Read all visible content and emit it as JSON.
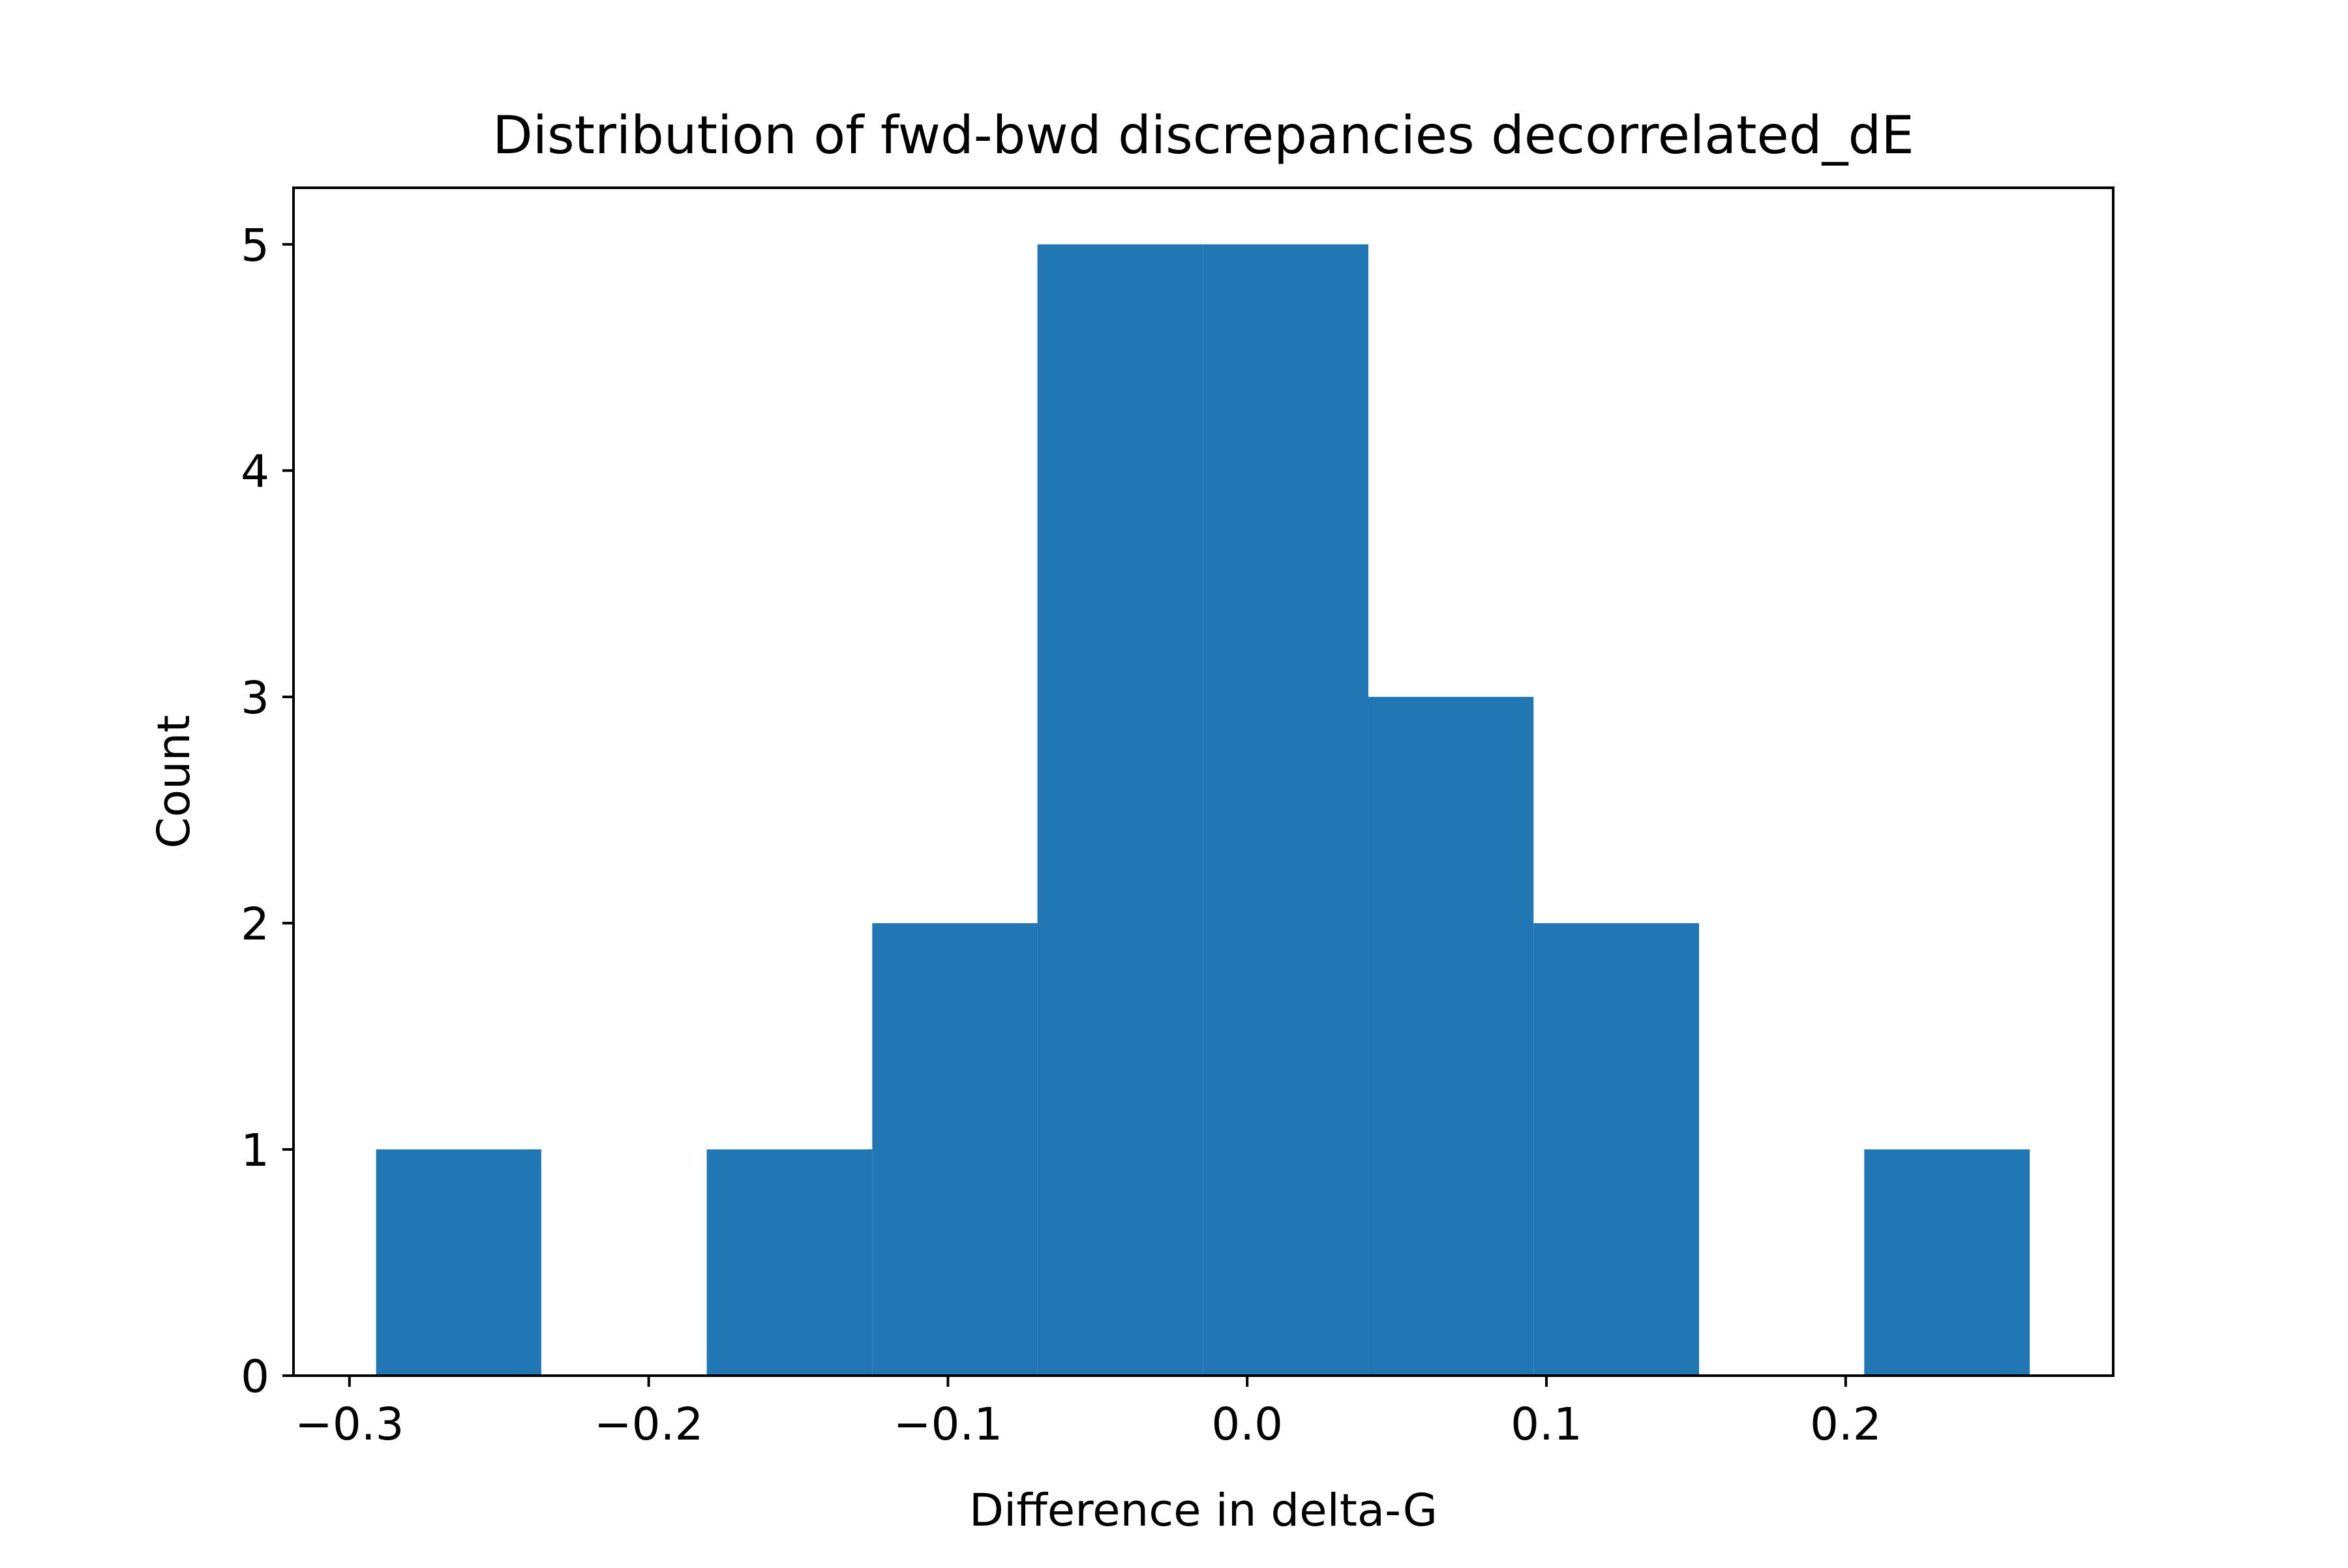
{
  "chart_data": {
    "type": "bar",
    "title": "Distribution of fwd-bwd discrepancies decorrelated_dE",
    "xlabel": "Difference in delta-G",
    "ylabel": "Count",
    "xlim": [
      -0.3187,
      0.2894
    ],
    "ylim": [
      0,
      5.25
    ],
    "bins": [
      {
        "x0": -0.2911,
        "x1": -0.2359,
        "count": 1
      },
      {
        "x0": -0.2359,
        "x1": -0.1806,
        "count": 0
      },
      {
        "x0": -0.1806,
        "x1": -0.1253,
        "count": 1
      },
      {
        "x0": -0.1253,
        "x1": -0.0701,
        "count": 2
      },
      {
        "x0": -0.0701,
        "x1": -0.0148,
        "count": 5
      },
      {
        "x0": -0.0148,
        "x1": 0.0405,
        "count": 5
      },
      {
        "x0": 0.0405,
        "x1": 0.0957,
        "count": 3
      },
      {
        "x0": 0.0957,
        "x1": 0.151,
        "count": 2
      },
      {
        "x0": 0.151,
        "x1": 0.2062,
        "count": 0
      },
      {
        "x0": 0.2062,
        "x1": 0.2615,
        "count": 1
      }
    ],
    "xticks": [
      {
        "value": -0.3,
        "label": "−0.3"
      },
      {
        "value": -0.2,
        "label": "−0.2"
      },
      {
        "value": -0.1,
        "label": "−0.1"
      },
      {
        "value": 0.0,
        "label": "0.0"
      },
      {
        "value": 0.1,
        "label": "0.1"
      },
      {
        "value": 0.2,
        "label": "0.2"
      }
    ],
    "yticks": [
      {
        "value": 0,
        "label": "0"
      },
      {
        "value": 1,
        "label": "1"
      },
      {
        "value": 2,
        "label": "2"
      },
      {
        "value": 3,
        "label": "3"
      },
      {
        "value": 4,
        "label": "4"
      },
      {
        "value": 5,
        "label": "5"
      }
    ],
    "grid": false,
    "colors": {
      "bar": "#2077b4",
      "axis": "#000000"
    }
  }
}
